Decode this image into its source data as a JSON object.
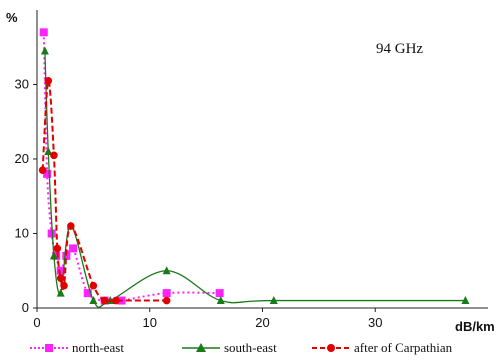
{
  "chart_data": {
    "type": "line",
    "annotation": "94 GHz",
    "ylabel": "%",
    "xlabel": "dB/km",
    "xlim": [
      0,
      40
    ],
    "ylim": [
      0,
      40
    ],
    "xticks": [
      0,
      10,
      20,
      30
    ],
    "yticks": [
      0,
      10,
      20,
      30
    ],
    "grid": false,
    "legend_position": "bottom",
    "series": [
      {
        "name": "north-east",
        "color": "#ff22ff",
        "style": "dotted",
        "marker": "square",
        "x": [
          0.6,
          0.9,
          1.3,
          1.7,
          2.1,
          2.6,
          3.2,
          4.5,
          6.0,
          7.5,
          11.5,
          16.2
        ],
        "y": [
          37,
          18,
          10,
          7,
          5,
          7,
          8,
          2,
          1,
          1,
          2,
          2
        ]
      },
      {
        "name": "south-east",
        "color": "#1a7a1a",
        "style": "solid",
        "marker": "triangle",
        "x": [
          0.7,
          1.0,
          1.5,
          2.1,
          3.0,
          5.0,
          6.5,
          11.5,
          16.3,
          21.0,
          38.0
        ],
        "y": [
          34.5,
          21,
          7,
          2,
          11,
          1,
          1,
          5,
          1,
          1,
          1
        ]
      },
      {
        "name": "after of Carpathian",
        "color": "#e00000",
        "style": "dashed",
        "marker": "circle",
        "x": [
          0.5,
          1.0,
          1.5,
          1.8,
          2.1,
          2.4,
          3.0,
          5.0,
          6.0,
          7.0,
          11.5
        ],
        "y": [
          18.5,
          30.5,
          20.5,
          8,
          4,
          3,
          11,
          3,
          1,
          1,
          1
        ]
      }
    ]
  }
}
